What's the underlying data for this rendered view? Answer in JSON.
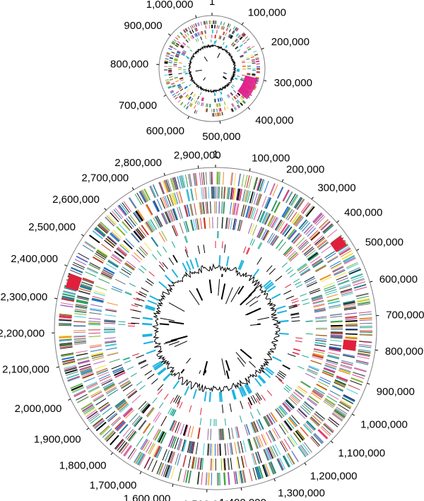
{
  "figure": {
    "description_type": "circular genome maps",
    "colors": {
      "ring": "#7f7f7f",
      "tick": "#000000",
      "cds_palette": [
        "#000000",
        "#1a1a1a",
        "#e03a7a",
        "#2f9e5f",
        "#1f6fd1",
        "#f2e23a",
        "#9b59b6",
        "#3ec7d6",
        "#c0392b",
        "#7fb23a",
        "#f08a24",
        "#6d6d6d",
        "#d46aa6",
        "#1c7f8c"
      ],
      "special_red": "#e0203a",
      "magenta": "#e0238a",
      "cyan": "#1fb4e0",
      "teal": "#1aa68f",
      "gc_line": "#000000",
      "yellow": "#f2e23a"
    }
  },
  "chart_data": [
    {
      "type": "circular-genome",
      "name": "small-chromosome",
      "genome_length_bp": 1050000,
      "tick_labels": [
        "1",
        "100,000",
        "200,000",
        "300,000",
        "400,000",
        "500,000",
        "600,000",
        "700,000",
        "800,000",
        "900,000",
        "1,000,000"
      ],
      "tick_positions_bp": [
        0,
        100000,
        200000,
        300000,
        400000,
        500000,
        600000,
        700000,
        800000,
        900000,
        1000000
      ],
      "highlight_regions_bp": [
        [
          300000,
          380000
        ]
      ]
    },
    {
      "type": "circular-genome",
      "name": "large-chromosome",
      "genome_length_bp": 2950000,
      "tick_labels": [
        "1",
        "100,000",
        "200,000",
        "300,000",
        "400,000",
        "500,000",
        "600,000",
        "700,000",
        "800,000",
        "900,000",
        "1,000,000",
        "1,100,000",
        "1,200,000",
        "1,300,000",
        "1,400,000",
        "1,500,000",
        "1,600,000",
        "1,700,000",
        "1,800,000",
        "1,900,000",
        "2,000,000",
        "2,100,000",
        "2,200,000",
        "2,300,000",
        "2,400,000",
        "2,500,000",
        "2,600,000",
        "2,700,000",
        "2,800,000",
        "2,900,000"
      ],
      "tick_positions_bp": [
        0,
        100000,
        200000,
        300000,
        400000,
        500000,
        600000,
        700000,
        800000,
        900000,
        1000000,
        1100000,
        1200000,
        1300000,
        1400000,
        1500000,
        1600000,
        1700000,
        1800000,
        1900000,
        2000000,
        2100000,
        2200000,
        2300000,
        2400000,
        2500000,
        2600000,
        2700000,
        2800000,
        2900000
      ],
      "highlight_regions_bp": [
        [
          440000,
          470000
        ],
        [
          780000,
          810000
        ],
        [
          2340000,
          2380000
        ]
      ]
    }
  ]
}
